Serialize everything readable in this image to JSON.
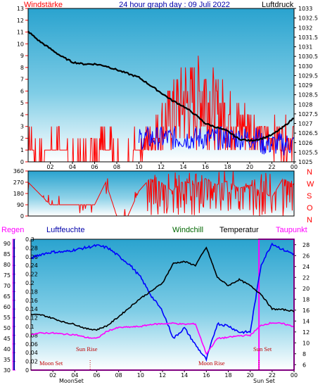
{
  "title": "24 hour graph day : 09 Juli 2022",
  "labels": {
    "windstaerke": "Windstärke",
    "luftdruck": "Luftdruck",
    "regen": "Regen",
    "luftfeuchte": "Luftfeuchte",
    "windchill": "Windchill",
    "temperatur": "Temperatur",
    "taupunkt": "Taupunkt"
  },
  "colors": {
    "wind": "#ff0000",
    "gust": "#0000ff",
    "pressure": "#000000",
    "humidity": "#0000ff",
    "temperature": "#000000",
    "dewpoint": "#ff00ff",
    "axis_red": "#ff0000",
    "axis_blue": "#0000aa",
    "axis_magenta": "#ff00ff",
    "sun_bg": "#ffffff",
    "sun_label": "#c00000"
  },
  "x_ticks": [
    "02",
    "04",
    "06",
    "08",
    "10",
    "12",
    "14",
    "16",
    "18",
    "20",
    "22",
    "00"
  ],
  "wind_axis_ticks": [
    "0",
    "1",
    "2",
    "3",
    "4",
    "5",
    "6",
    "7",
    "8",
    "9",
    "10",
    "11",
    "12",
    "13"
  ],
  "pressure_axis_ticks": [
    "1025",
    "1025.5",
    "1026",
    "1026.5",
    "1027",
    "1027.5",
    "1028",
    "1028.5",
    "1029",
    "1029.5",
    "1030",
    "1030.5",
    "1031",
    "1031.5",
    "1032",
    "1032.5",
    "1033"
  ],
  "dir_axis_ticks": [
    "0",
    "90",
    "180",
    "270",
    "360"
  ],
  "compass": [
    "N",
    "W",
    "S",
    "O",
    "N"
  ],
  "rain_axis_ticks": [
    "0",
    "0.02",
    "0.04",
    "0.06",
    "0.08",
    "0.1",
    "0.12",
    "0.14",
    "0.16",
    "0.18",
    "0.2",
    "0.22",
    "0.24",
    "0.26",
    "0.28",
    "0.3"
  ],
  "humidity_axis_ticks": [
    "30",
    "35",
    "40",
    "45",
    "50",
    "55",
    "60",
    "65",
    "70",
    "75",
    "80",
    "85",
    "90"
  ],
  "temp_axis_ticks": [
    "6",
    "8",
    "10",
    "12",
    "14",
    "16",
    "18",
    "20",
    "22",
    "24",
    "26",
    "28"
  ],
  "bottom_ticks": [
    "02",
    "04",
    "06",
    "08",
    "10",
    "12",
    "14",
    "16",
    "18",
    "20",
    "22",
    "00"
  ],
  "events": {
    "moon_set": "Moon Set",
    "sun_rise": "Sun Rise",
    "moon_rise": "Moon Rise",
    "sun_set": "Sun Set"
  },
  "bottom_events": {
    "moon_set": "MoonSet",
    "moon_rise": "MoonRise",
    "sun_set": "Sun Set"
  },
  "chart_data": [
    {
      "type": "line",
      "name": "wind-pressure",
      "x_unit": "hour",
      "series": [
        {
          "name": "Luftdruck",
          "x": [
            0,
            1,
            2,
            3,
            4,
            5,
            6,
            7,
            8,
            9,
            10,
            11,
            12,
            13,
            14,
            15,
            16,
            17,
            18,
            19,
            20,
            21,
            22,
            23,
            24
          ],
          "values": [
            1031.8,
            1031.3,
            1030.9,
            1030.5,
            1030.2,
            1030.1,
            1030.1,
            1030.0,
            1029.8,
            1029.6,
            1029.4,
            1029.0,
            1028.6,
            1028.2,
            1027.9,
            1027.5,
            1027.0,
            1026.8,
            1026.6,
            1026.2,
            1026.1,
            1026.2,
            1026.4,
            1026.8,
            1027.3
          ]
        },
        {
          "name": "Windstärke",
          "x": [
            0,
            1,
            2,
            3,
            4,
            5,
            6,
            7,
            8,
            9,
            10,
            11,
            12,
            13,
            14,
            15,
            16,
            17,
            18,
            19,
            20,
            21,
            22,
            23,
            24
          ],
          "values": [
            1,
            0,
            1,
            1,
            0,
            0,
            0,
            1,
            0,
            0,
            1,
            2,
            3,
            4,
            5,
            5,
            6,
            4,
            4,
            3,
            3,
            2,
            2,
            2,
            2
          ]
        }
      ],
      "xlim": [
        0,
        24
      ],
      "ylim_left": [
        0,
        13
      ],
      "ylim_right": [
        1025,
        1033
      ]
    },
    {
      "type": "line",
      "name": "wind-direction",
      "x_unit": "hour",
      "series": [
        {
          "name": "Windrichtung",
          "x": [
            0,
            1,
            2,
            3,
            4,
            5,
            6,
            7,
            8,
            9,
            10,
            11,
            12,
            13,
            14,
            15,
            16,
            17,
            18,
            19,
            20,
            21,
            22,
            23,
            24
          ],
          "values": [
            270,
            180,
            90,
            90,
            90,
            90,
            90,
            270,
            0,
            0,
            200,
            300,
            270,
            200,
            280,
            250,
            300,
            250,
            280,
            220,
            250,
            200,
            150,
            300,
            250
          ]
        }
      ],
      "xlim": [
        0,
        24
      ],
      "ylim": [
        0,
        360
      ]
    },
    {
      "type": "line",
      "name": "humidity-temperature",
      "x_unit": "hour",
      "series": [
        {
          "name": "Luftfeuchte",
          "x": [
            0,
            1,
            2,
            3,
            4,
            5,
            6,
            7,
            8,
            9,
            10,
            11,
            12,
            13,
            14,
            15,
            16,
            17,
            18,
            19,
            20,
            21,
            22,
            23,
            24
          ],
          "values": [
            83,
            85,
            86,
            86,
            87,
            88,
            89,
            88,
            84,
            80,
            74,
            65,
            58,
            45,
            50,
            42,
            35,
            52,
            51,
            48,
            48,
            80,
            90,
            87,
            85
          ]
        },
        {
          "name": "Temperatur",
          "x": [
            0,
            1,
            2,
            3,
            4,
            5,
            6,
            7,
            8,
            9,
            10,
            11,
            12,
            13,
            14,
            15,
            16,
            17,
            18,
            19,
            20,
            21,
            22,
            23,
            24
          ],
          "values": [
            15.2,
            15.1,
            14.5,
            13.8,
            13.4,
            12.6,
            12.4,
            13.2,
            14.8,
            16.5,
            18.2,
            19.5,
            21.0,
            24.6,
            24.9,
            24.2,
            27.5,
            22.0,
            20.5,
            21.6,
            20.5,
            18.9,
            16.2,
            16.1,
            15.8
          ]
        },
        {
          "name": "Taupunkt",
          "x": [
            0,
            1,
            2,
            3,
            4,
            5,
            6,
            7,
            8,
            9,
            10,
            11,
            12,
            13,
            14,
            15,
            16,
            17,
            18,
            19,
            20,
            21,
            22,
            23,
            24
          ],
          "values": [
            11.6,
            11.8,
            11.8,
            11.6,
            11.5,
            11.0,
            10.8,
            12.2,
            12.8,
            12.9,
            13.0,
            13.4,
            13.5,
            13.6,
            13.4,
            13.5,
            8.0,
            10.8,
            11.0,
            11.3,
            11.4,
            13.2,
            13.7,
            13.5,
            13.0
          ]
        }
      ],
      "xlim": [
        0,
        24
      ],
      "ylim_humidity": [
        30,
        92
      ],
      "ylim_temperature": [
        5,
        29
      ],
      "ylim_rain": [
        0,
        0.3
      ]
    }
  ]
}
